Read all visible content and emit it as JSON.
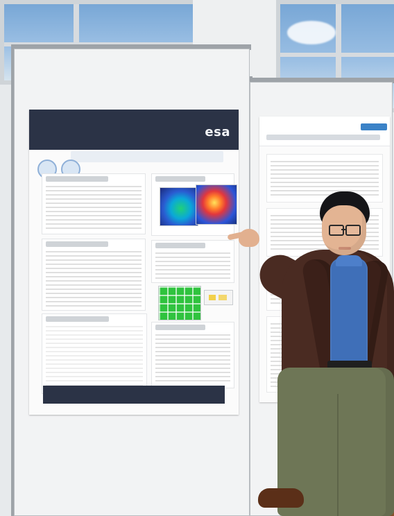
{
  "scene": {
    "poster_left": {
      "logo_text": "esa"
    }
  },
  "colors": {
    "poster_header": "#2b3346",
    "jacket": "#4a2b22",
    "shirt": "#3f6fb8",
    "pants": "#6e7656"
  }
}
